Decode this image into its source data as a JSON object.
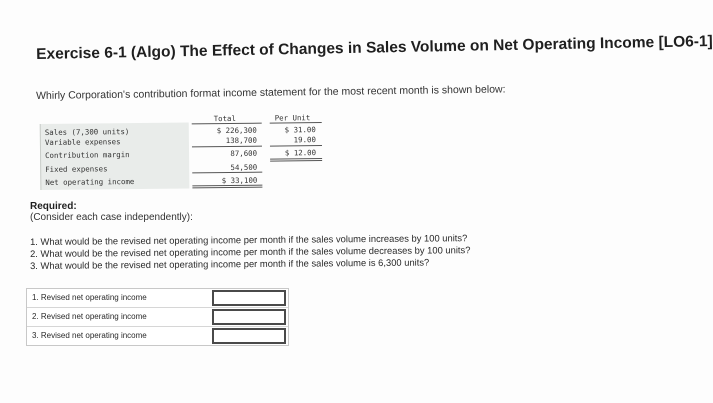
{
  "title": "Exercise 6-1 (Algo) The Effect of Changes in Sales Volume on Net Operating Income [LO6-1]",
  "intro": "Whirly Corporation's contribution format income statement for the most recent month is shown below:",
  "statement": {
    "headers": {
      "total": "Total",
      "per_unit": "Per Unit"
    },
    "rows": [
      {
        "label": "Sales (7,300 units)",
        "total": "$ 226,300",
        "per_unit": "$ 31.00"
      },
      {
        "label": "Variable expenses",
        "total": "138,700",
        "per_unit": "19.00"
      },
      {
        "label": "Contribution margin",
        "total": "87,600",
        "per_unit": "$ 12.00"
      },
      {
        "label": "Fixed expenses",
        "total": "54,500",
        "per_unit": ""
      },
      {
        "label": "Net operating income",
        "total": "$ 33,100",
        "per_unit": ""
      }
    ]
  },
  "required": {
    "label": "Required:",
    "note": "(Consider each case independently):",
    "questions": [
      "1. What would be the revised net operating income per month if the sales volume increases by 100 units?",
      "2. What would be the revised net operating income per month if the sales volume decreases by 100 units?",
      "3. What would be the revised net operating income per month if the sales volume is 6,300 units?"
    ]
  },
  "answers": [
    {
      "label": "1. Revised net operating income",
      "value": ""
    },
    {
      "label": "2. Revised net operating income",
      "value": ""
    },
    {
      "label": "3. Revised net operating income",
      "value": ""
    }
  ]
}
